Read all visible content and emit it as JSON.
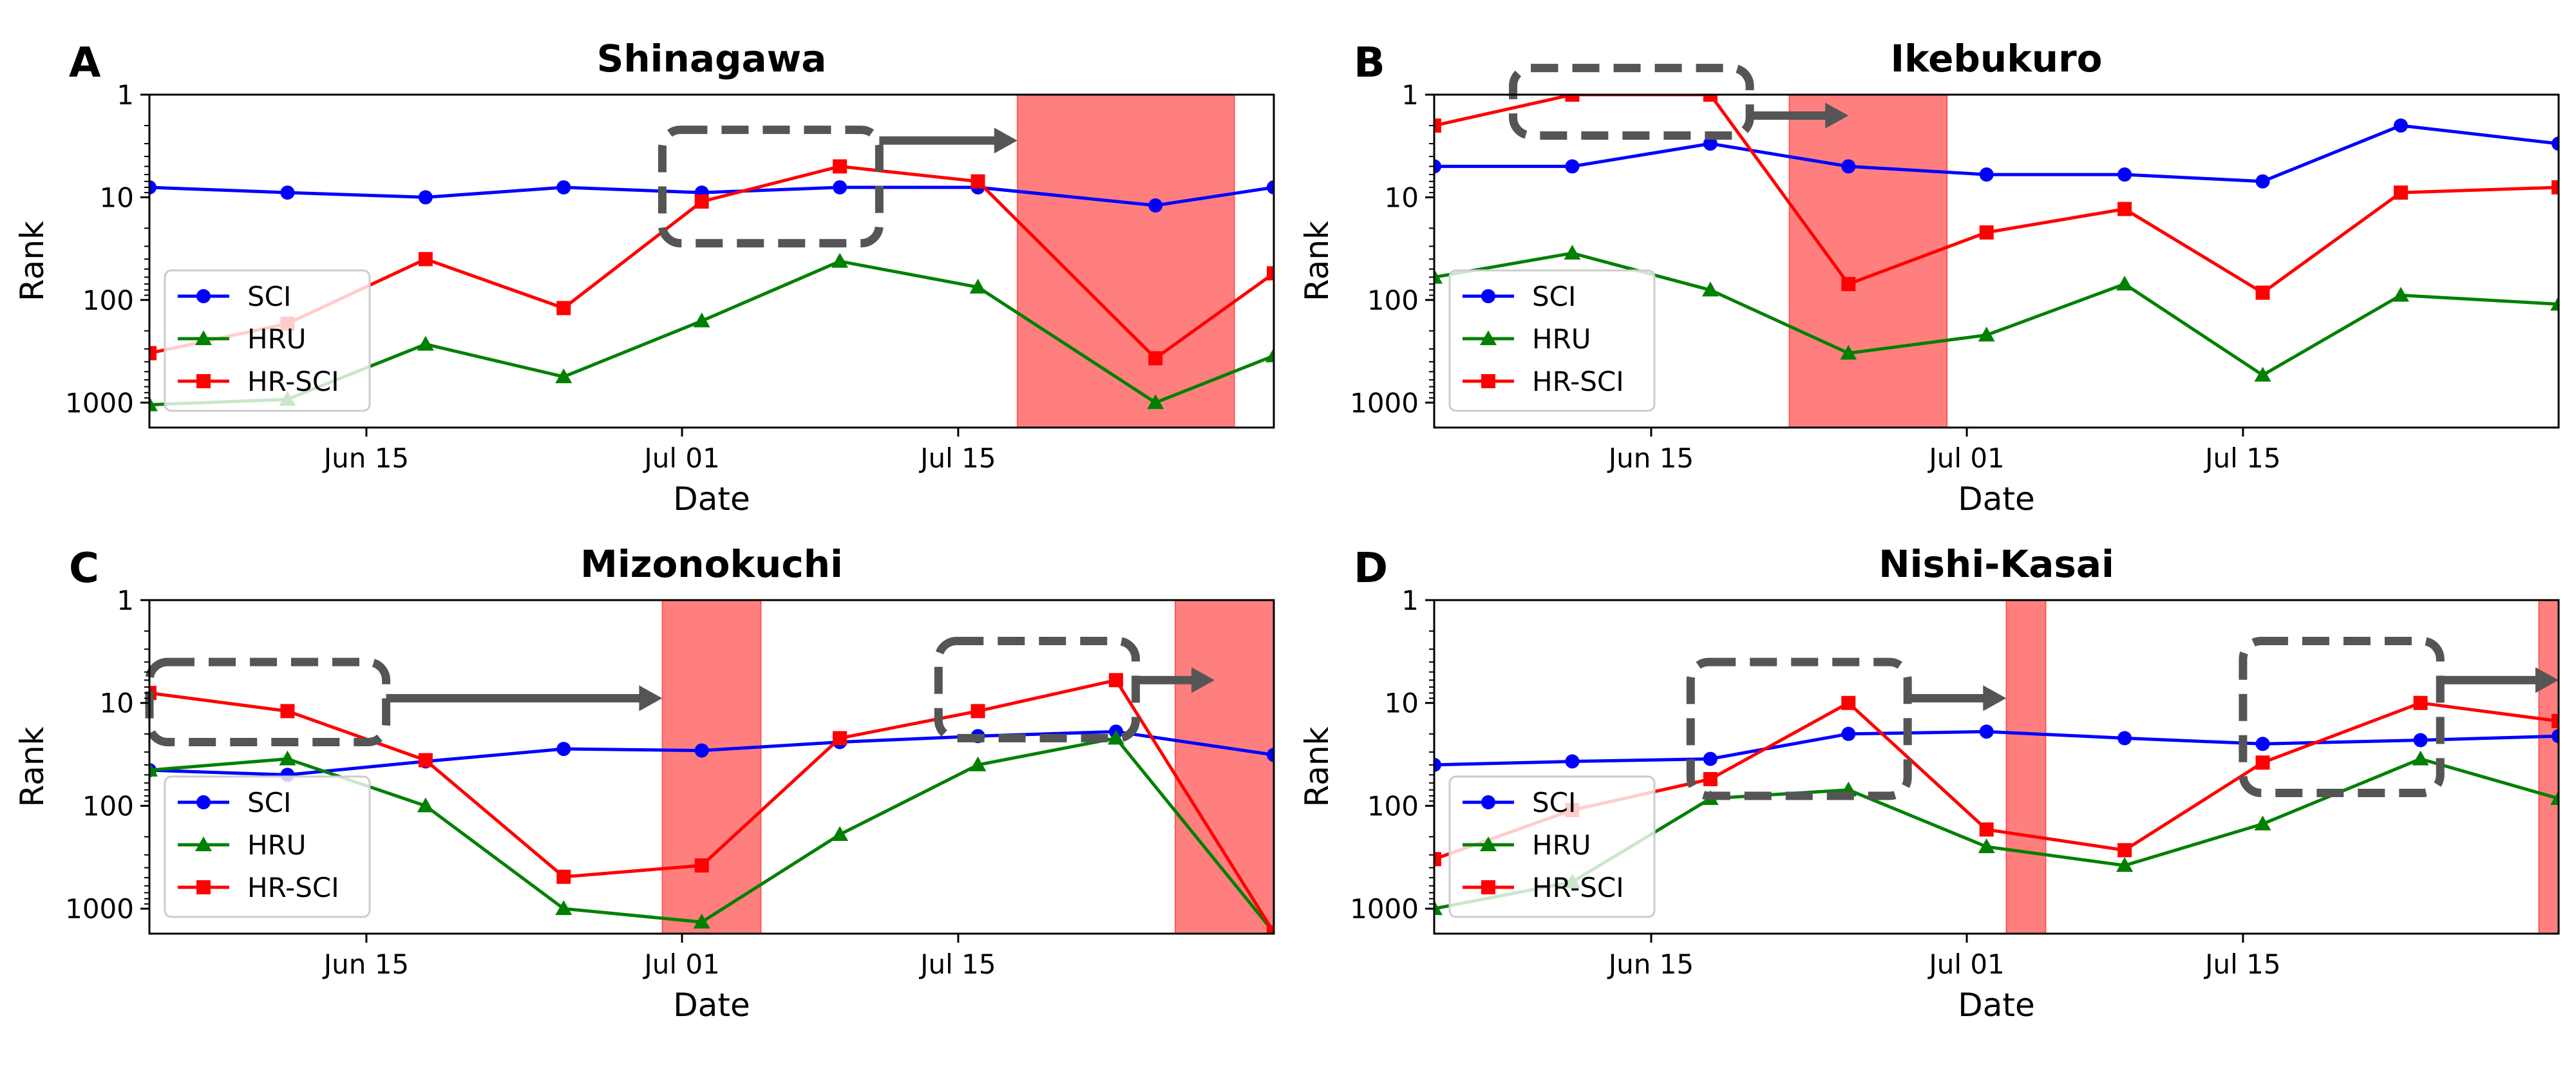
{
  "chart_data": [
    {
      "type": "line",
      "panel_label": "A",
      "title": "Shinagawa",
      "xlabel": "Date",
      "ylabel": "Rank",
      "yscale": "log",
      "y_inverted": true,
      "ylim": [
        1,
        1750
      ],
      "xlim": [
        "2025-06-04",
        "2025-07-31"
      ],
      "x_ticks": [
        {
          "date": "2025-06-15",
          "label": "Jun 15"
        },
        {
          "date": "2025-07-01",
          "label": "Jul 01"
        },
        {
          "date": "2025-07-15",
          "label": "Jul 15"
        }
      ],
      "y_ticks": [
        {
          "value": 1,
          "label": "1"
        },
        {
          "value": 10,
          "label": "10"
        },
        {
          "value": 100,
          "label": "100"
        },
        {
          "value": 1000,
          "label": "1000"
        }
      ],
      "grid": false,
      "legend_position": "lower-left",
      "x": [
        "2025-06-04",
        "2025-06-11",
        "2025-06-18",
        "2025-06-25",
        "2025-07-02",
        "2025-07-09",
        "2025-07-16",
        "2025-07-25",
        "2025-07-31"
      ],
      "series": [
        {
          "name": "SCI",
          "color": "#0000ff",
          "marker": "circle",
          "values": [
            8,
            9,
            10,
            8,
            9,
            8,
            8,
            12,
            8
          ]
        },
        {
          "name": "HRU",
          "color": "#008000",
          "marker": "triangle",
          "values": [
            1050,
            930,
            270,
            560,
            160,
            42,
            75,
            1000,
            350
          ]
        },
        {
          "name": "HR-SCI",
          "color": "#ff0000",
          "marker": "square",
          "values": [
            330,
            170,
            40,
            120,
            11,
            5,
            7,
            370,
            55
          ]
        }
      ],
      "shaded_regions": [
        {
          "start": "2025-07-18",
          "end": "2025-07-29",
          "color": "#ff0000"
        }
      ],
      "annotations": [
        {
          "type": "dashed-box",
          "x_start": "2025-06-30",
          "x_end": "2025-07-11",
          "y_top": 2.2,
          "y_bottom": 28
        },
        {
          "type": "arrow",
          "x_start": "2025-07-11",
          "x_end": "2025-07-18",
          "y": 2.8
        }
      ]
    },
    {
      "type": "line",
      "panel_label": "B",
      "title": "Ikebukuro",
      "xlabel": "Date",
      "ylabel": "Rank",
      "yscale": "log",
      "y_inverted": true,
      "ylim": [
        1,
        1750
      ],
      "xlim": [
        "2025-06-04",
        "2025-07-31"
      ],
      "x_ticks": [
        {
          "date": "2025-06-15",
          "label": "Jun 15"
        },
        {
          "date": "2025-07-01",
          "label": "Jul 01"
        },
        {
          "date": "2025-07-15",
          "label": "Jul 15"
        }
      ],
      "y_ticks": [
        {
          "value": 1,
          "label": "1"
        },
        {
          "value": 10,
          "label": "10"
        },
        {
          "value": 100,
          "label": "100"
        },
        {
          "value": 1000,
          "label": "1000"
        }
      ],
      "grid": false,
      "legend_position": "lower-left",
      "x": [
        "2025-06-04",
        "2025-06-11",
        "2025-06-18",
        "2025-06-25",
        "2025-07-02",
        "2025-07-09",
        "2025-07-16",
        "2025-07-23",
        "2025-07-31"
      ],
      "series": [
        {
          "name": "SCI",
          "color": "#0000ff",
          "marker": "circle",
          "values": [
            5,
            5,
            3,
            5,
            6,
            6,
            7,
            2,
            3
          ]
        },
        {
          "name": "HRU",
          "color": "#008000",
          "marker": "triangle",
          "values": [
            60,
            35,
            80,
            330,
            220,
            70,
            540,
            90,
            110
          ]
        },
        {
          "name": "HR-SCI",
          "color": "#ff0000",
          "marker": "square",
          "values": [
            2,
            1,
            1,
            70,
            22,
            13,
            85,
            9,
            8
          ]
        }
      ],
      "shaded_regions": [
        {
          "start": "2025-06-22",
          "end": "2025-06-30",
          "color": "#ff0000"
        }
      ],
      "annotations": [
        {
          "type": "dashed-box",
          "x_start": "2025-06-08",
          "x_end": "2025-06-20",
          "y_top": 0.55,
          "y_bottom": 2.5
        },
        {
          "type": "arrow",
          "x_start": "2025-06-20",
          "x_end": "2025-06-25",
          "y": 1.6
        }
      ]
    },
    {
      "type": "line",
      "panel_label": "C",
      "title": "Mizonokuchi",
      "xlabel": "Date",
      "ylabel": "Rank",
      "yscale": "log",
      "y_inverted": true,
      "ylim": [
        1,
        1750
      ],
      "xlim": [
        "2025-06-04",
        "2025-07-31"
      ],
      "x_ticks": [
        {
          "date": "2025-06-15",
          "label": "Jun 15"
        },
        {
          "date": "2025-07-01",
          "label": "Jul 01"
        },
        {
          "date": "2025-07-15",
          "label": "Jul 15"
        }
      ],
      "y_ticks": [
        {
          "value": 1,
          "label": "1"
        },
        {
          "value": 10,
          "label": "10"
        },
        {
          "value": 100,
          "label": "100"
        },
        {
          "value": 1000,
          "label": "1000"
        }
      ],
      "grid": false,
      "legend_position": "lower-left",
      "x": [
        "2025-06-04",
        "2025-06-11",
        "2025-06-18",
        "2025-06-25",
        "2025-07-02",
        "2025-07-09",
        "2025-07-16",
        "2025-07-23",
        "2025-07-31"
      ],
      "series": [
        {
          "name": "SCI",
          "color": "#0000ff",
          "marker": "circle",
          "values": [
            45,
            50,
            37,
            28,
            29,
            24,
            21,
            19,
            32
          ]
        },
        {
          "name": "HRU",
          "color": "#008000",
          "marker": "triangle",
          "values": [
            45,
            35,
            100,
            1000,
            1350,
            190,
            40,
            22,
            1700
          ]
        },
        {
          "name": "HR-SCI",
          "color": "#ff0000",
          "marker": "square",
          "values": [
            8,
            12,
            36,
            490,
            380,
            22,
            12,
            6,
            1700
          ]
        }
      ],
      "shaded_regions": [
        {
          "start": "2025-06-30",
          "end": "2025-07-05",
          "color": "#ff0000"
        },
        {
          "start": "2025-07-26",
          "end": "2025-07-31",
          "color": "#ff0000"
        }
      ],
      "annotations": [
        {
          "type": "dashed-box",
          "x_start": "2025-06-04",
          "x_end": "2025-06-16",
          "y_top": 4,
          "y_bottom": 24
        },
        {
          "type": "arrow",
          "x_start": "2025-06-16",
          "x_end": "2025-06-30",
          "y": 9
        },
        {
          "type": "dashed-box",
          "x_start": "2025-07-14",
          "x_end": "2025-07-24",
          "y_top": 2.5,
          "y_bottom": 22
        },
        {
          "type": "arrow",
          "x_start": "2025-07-24",
          "x_end": "2025-07-28",
          "y": 6
        }
      ]
    },
    {
      "type": "line",
      "panel_label": "D",
      "title": "Nishi-Kasai",
      "xlabel": "Date",
      "ylabel": "Rank",
      "yscale": "log",
      "y_inverted": true,
      "ylim": [
        1,
        1750
      ],
      "xlim": [
        "2025-06-04",
        "2025-07-31"
      ],
      "x_ticks": [
        {
          "date": "2025-06-15",
          "label": "Jun 15"
        },
        {
          "date": "2025-07-01",
          "label": "Jul 01"
        },
        {
          "date": "2025-07-15",
          "label": "Jul 15"
        }
      ],
      "y_ticks": [
        {
          "value": 1,
          "label": "1"
        },
        {
          "value": 10,
          "label": "10"
        },
        {
          "value": 100,
          "label": "100"
        },
        {
          "value": 1000,
          "label": "1000"
        }
      ],
      "grid": false,
      "legend_position": "lower-left",
      "x": [
        "2025-06-04",
        "2025-06-11",
        "2025-06-18",
        "2025-06-25",
        "2025-07-02",
        "2025-07-09",
        "2025-07-16",
        "2025-07-24",
        "2025-07-31"
      ],
      "series": [
        {
          "name": "SCI",
          "color": "#0000ff",
          "marker": "circle",
          "values": [
            40,
            37,
            35,
            20,
            19,
            22,
            25,
            23,
            21
          ]
        },
        {
          "name": "HRU",
          "color": "#008000",
          "marker": "triangle",
          "values": [
            1000,
            550,
            85,
            70,
            250,
            380,
            150,
            35,
            85
          ]
        },
        {
          "name": "HR-SCI",
          "color": "#ff0000",
          "marker": "square",
          "values": [
            330,
            110,
            55,
            10,
            170,
            270,
            38,
            10,
            15
          ]
        }
      ],
      "shaded_regions": [
        {
          "start": "2025-07-03",
          "end": "2025-07-05",
          "color": "#ff0000"
        },
        {
          "start": "2025-07-30",
          "end": "2025-07-31",
          "color": "#ff0000"
        }
      ],
      "annotations": [
        {
          "type": "dashed-box",
          "x_start": "2025-06-17",
          "x_end": "2025-06-28",
          "y_top": 4,
          "y_bottom": 80
        },
        {
          "type": "arrow",
          "x_start": "2025-06-28",
          "x_end": "2025-07-03",
          "y": 9
        },
        {
          "type": "dashed-box",
          "x_start": "2025-07-15",
          "x_end": "2025-07-25",
          "y_top": 2.5,
          "y_bottom": 75
        },
        {
          "type": "arrow",
          "x_start": "2025-07-25",
          "x_end": "2025-07-31",
          "y": 6
        }
      ]
    }
  ]
}
